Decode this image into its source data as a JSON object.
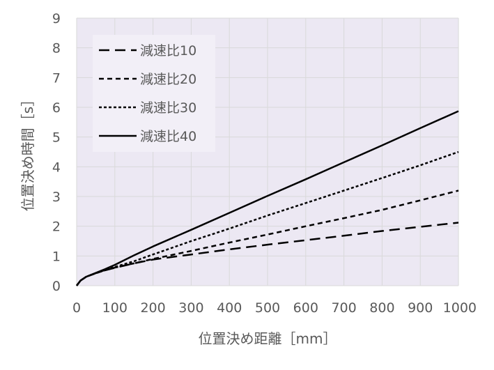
{
  "chart_data": {
    "type": "line",
    "title": "",
    "xlabel": "位置決め距離［mm］",
    "ylabel": "位置決め時間［s］",
    "xlim": [
      0,
      1000
    ],
    "ylim": [
      0,
      9
    ],
    "x_ticks": [
      "0",
      "100",
      "200",
      "300",
      "400",
      "500",
      "600",
      "700",
      "800",
      "900",
      "1000"
    ],
    "y_ticks": [
      "0",
      "1",
      "2",
      "3",
      "4",
      "5",
      "6",
      "7",
      "8",
      "9"
    ],
    "grid": true,
    "legend_position": "top-left",
    "plot_background": "#ECE8F3",
    "line_color": "#000000",
    "series": [
      {
        "name": "減速比10",
        "style": "long-dash",
        "x": [
          0,
          10,
          25,
          50,
          75,
          100,
          150,
          200,
          300,
          400,
          500,
          600,
          700,
          800,
          900,
          1000
        ],
        "y": [
          0,
          0.17,
          0.3,
          0.42,
          0.52,
          0.6,
          0.75,
          0.88,
          1.05,
          1.22,
          1.38,
          1.53,
          1.68,
          1.84,
          1.98,
          2.12
        ]
      },
      {
        "name": "減速比20",
        "style": "dash",
        "x": [
          0,
          10,
          25,
          50,
          75,
          100,
          150,
          200,
          300,
          400,
          500,
          600,
          700,
          800,
          900,
          1000
        ],
        "y": [
          0,
          0.17,
          0.3,
          0.42,
          0.52,
          0.61,
          0.75,
          0.9,
          1.17,
          1.45,
          1.72,
          2.0,
          2.27,
          2.55,
          2.87,
          3.2
        ]
      },
      {
        "name": "減速比30",
        "style": "short-dash",
        "x": [
          0,
          10,
          25,
          50,
          75,
          100,
          150,
          200,
          300,
          400,
          500,
          600,
          700,
          800,
          900,
          1000
        ],
        "y": [
          0,
          0.17,
          0.3,
          0.42,
          0.53,
          0.63,
          0.82,
          1.05,
          1.5,
          1.92,
          2.36,
          2.78,
          3.2,
          3.62,
          4.05,
          4.5
        ]
      },
      {
        "name": "減速比40",
        "style": "solid",
        "x": [
          0,
          10,
          25,
          50,
          75,
          100,
          150,
          200,
          300,
          400,
          500,
          600,
          700,
          800,
          900,
          1000
        ],
        "y": [
          0,
          0.17,
          0.3,
          0.43,
          0.56,
          0.7,
          1.02,
          1.32,
          1.88,
          2.45,
          3.02,
          3.58,
          4.15,
          4.72,
          5.3,
          5.87
        ]
      }
    ]
  }
}
